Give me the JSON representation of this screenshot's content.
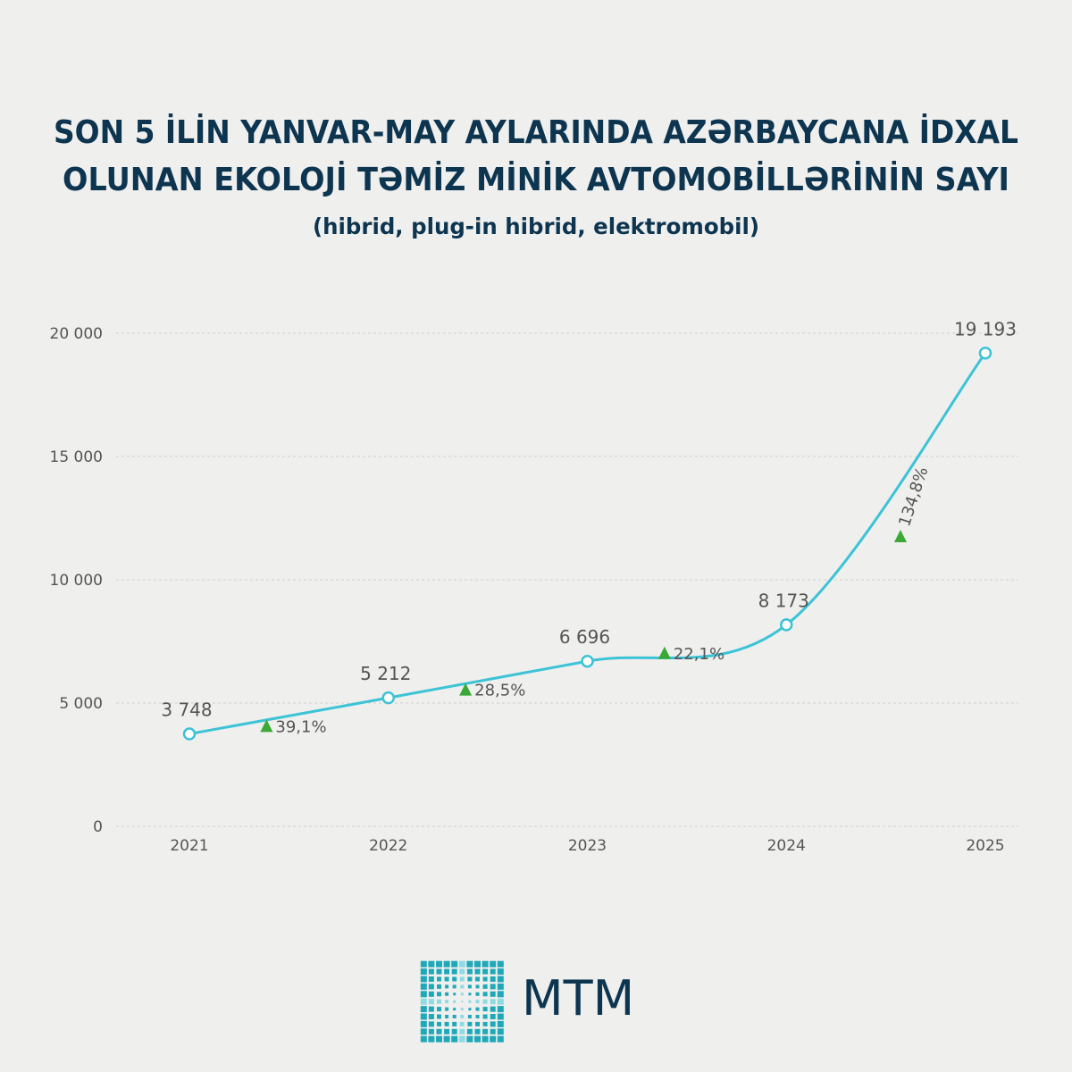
{
  "chart_data": {
    "type": "line",
    "title": [
      "SON 5 İLİN YANVAR-MAY AYLARINDA AZƏRBAYCANA İDXAL",
      "OLUNAN EKOLOJİ TƏMİZ MİNİK AVTOMOBİLLƏRİNİN SAYI"
    ],
    "subtitle": "(hibrid, plug-in hibrid, elektromobil)",
    "categories": [
      "2021",
      "2022",
      "2023",
      "2024",
      "2025"
    ],
    "values": [
      3748,
      5212,
      6696,
      8173,
      19193
    ],
    "value_labels": [
      "3 748",
      "5 212",
      "6 696",
      "8 173",
      "19 193"
    ],
    "color": "#3cc3d6",
    "growth_labels": [
      "39,1%",
      "28,5%",
      "22,1%",
      "134,8%"
    ],
    "growth_color": "#3aa935",
    "ylim": [
      0,
      20000
    ],
    "yticks": [
      0,
      {
        "value": 5000,
        "label": "5 000"
      },
      {
        "value": 10000,
        "label": "10 000"
      },
      {
        "value": 15000,
        "label": "15 000"
      },
      {
        "value": 20000,
        "label": "20 000"
      }
    ],
    "grid": true,
    "logo": "MTM"
  }
}
